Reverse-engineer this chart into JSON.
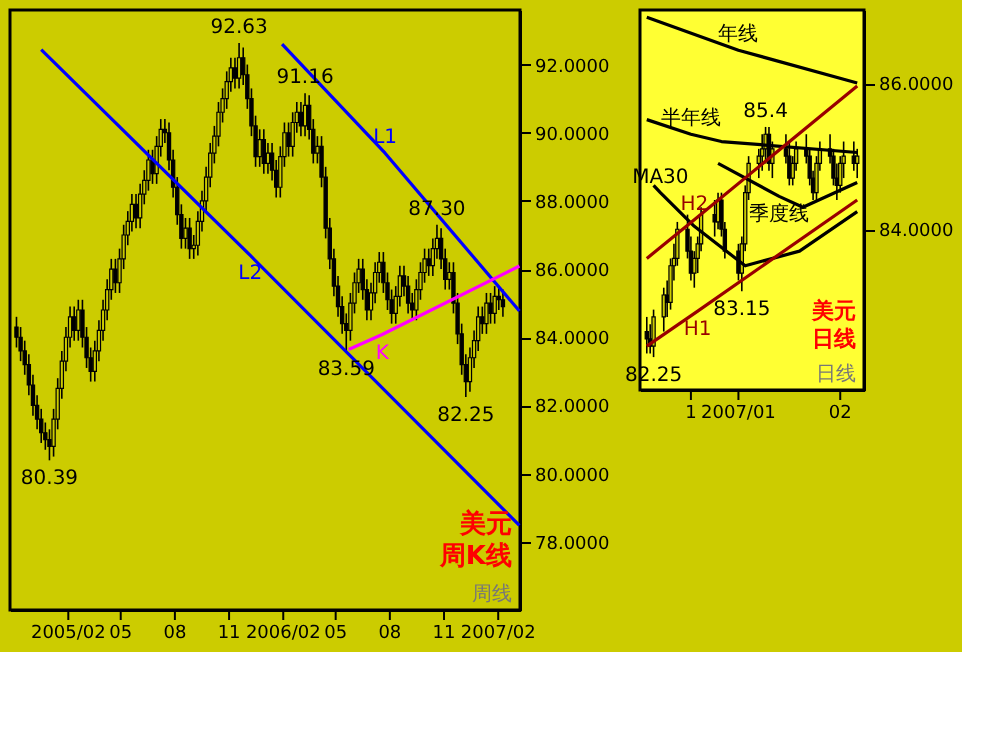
{
  "chart_data": [
    {
      "type": "candlestick",
      "x": [
        "2004-11-05",
        "2004-11-12",
        "2004-11-19",
        "2004-11-26",
        "2004-12-03",
        "2004-12-10",
        "2004-12-17",
        "2004-12-24",
        "2004-12-31",
        "2005-01-07",
        "2005-01-14",
        "2005-01-21",
        "2005-01-28",
        "2005-02-04",
        "2005-02-11",
        "2005-02-18",
        "2005-02-25",
        "2005-03-04",
        "2005-03-11",
        "2005-03-18",
        "2005-03-25",
        "2005-04-01",
        "2005-04-08",
        "2005-04-15",
        "2005-04-22",
        "2005-04-29",
        "2005-05-06",
        "2005-05-13",
        "2005-05-20",
        "2005-05-27",
        "2005-06-03",
        "2005-06-10",
        "2005-06-17",
        "2005-06-24",
        "2005-07-01",
        "2005-07-08",
        "2005-07-15",
        "2005-07-22",
        "2005-07-29",
        "2005-08-05",
        "2005-08-12",
        "2005-08-19",
        "2005-08-26",
        "2005-09-02",
        "2005-09-09",
        "2005-09-16",
        "2005-09-23",
        "2005-09-30",
        "2005-10-07",
        "2005-10-14",
        "2005-10-21",
        "2005-10-28",
        "2005-11-04",
        "2005-11-11",
        "2005-11-18",
        "2005-11-25",
        "2005-12-02",
        "2005-12-09",
        "2005-12-16",
        "2005-12-23",
        "2005-12-30",
        "2006-01-06",
        "2006-01-13",
        "2006-01-20",
        "2006-01-27",
        "2006-02-03",
        "2006-02-10",
        "2006-02-17",
        "2006-02-24",
        "2006-03-03",
        "2006-03-10",
        "2006-03-17",
        "2006-03-24",
        "2006-03-31",
        "2006-04-07",
        "2006-04-14",
        "2006-04-21",
        "2006-04-28",
        "2006-05-05",
        "2006-05-12",
        "2006-05-19",
        "2006-05-26",
        "2006-06-02",
        "2006-06-09",
        "2006-06-16",
        "2006-06-23",
        "2006-06-30",
        "2006-07-07",
        "2006-07-14",
        "2006-07-21",
        "2006-07-28",
        "2006-08-04",
        "2006-08-11",
        "2006-08-18",
        "2006-08-25",
        "2006-09-01",
        "2006-09-08",
        "2006-09-15",
        "2006-09-22",
        "2006-09-29",
        "2006-10-06",
        "2006-10-13",
        "2006-10-20",
        "2006-10-27",
        "2006-11-03",
        "2006-11-10",
        "2006-11-17",
        "2006-11-24",
        "2006-12-01",
        "2006-12-08",
        "2006-12-15",
        "2006-12-22",
        "2006-12-29",
        "2007-01-05",
        "2007-01-12",
        "2007-01-19",
        "2007-01-26",
        "2007-02-02",
        "2007-02-09"
      ],
      "ohlc": [
        [
          84.3,
          84.6,
          83.7,
          84.0
        ],
        [
          84.0,
          84.3,
          83.3,
          83.6
        ],
        [
          83.6,
          83.9,
          82.9,
          83.2
        ],
        [
          83.2,
          83.5,
          82.3,
          82.6
        ],
        [
          82.6,
          82.9,
          81.7,
          82.0
        ],
        [
          82.0,
          82.3,
          81.3,
          81.6
        ],
        [
          81.6,
          81.9,
          80.9,
          81.2
        ],
        [
          81.2,
          81.5,
          80.7,
          81.0
        ],
        [
          81.0,
          81.3,
          80.39,
          80.8
        ],
        [
          80.8,
          81.9,
          80.5,
          81.6
        ],
        [
          81.6,
          82.8,
          81.3,
          82.5
        ],
        [
          82.5,
          83.6,
          82.2,
          83.3
        ],
        [
          83.3,
          84.3,
          83.0,
          84.0
        ],
        [
          84.0,
          84.9,
          83.7,
          84.6
        ],
        [
          84.6,
          84.9,
          83.9,
          84.2
        ],
        [
          84.2,
          85.1,
          83.9,
          84.8
        ],
        [
          84.8,
          85.1,
          83.7,
          84.0
        ],
        [
          84.0,
          84.3,
          83.1,
          83.4
        ],
        [
          83.4,
          83.7,
          82.7,
          83.0
        ],
        [
          83.0,
          83.9,
          82.7,
          83.6
        ],
        [
          83.6,
          84.5,
          83.3,
          84.2
        ],
        [
          84.2,
          85.1,
          83.9,
          84.8
        ],
        [
          84.8,
          85.7,
          84.5,
          85.4
        ],
        [
          85.4,
          86.3,
          85.1,
          86.0
        ],
        [
          86.0,
          86.3,
          85.3,
          85.6
        ],
        [
          85.6,
          86.6,
          85.3,
          86.3
        ],
        [
          86.3,
          87.3,
          86.0,
          87.0
        ],
        [
          87.0,
          87.7,
          86.7,
          87.4
        ],
        [
          87.4,
          88.2,
          87.1,
          87.9
        ],
        [
          87.9,
          88.2,
          87.2,
          87.5
        ],
        [
          87.5,
          88.5,
          87.2,
          88.2
        ],
        [
          88.2,
          88.9,
          87.9,
          88.6
        ],
        [
          88.6,
          89.5,
          88.3,
          89.2
        ],
        [
          89.2,
          89.5,
          88.5,
          88.8
        ],
        [
          88.8,
          89.9,
          88.5,
          89.6
        ],
        [
          89.6,
          90.4,
          89.3,
          90.1
        ],
        [
          90.1,
          90.4,
          89.7,
          90.0
        ],
        [
          90.0,
          90.3,
          88.9,
          89.2
        ],
        [
          89.2,
          89.5,
          88.1,
          88.4
        ],
        [
          88.4,
          88.7,
          87.3,
          87.6
        ],
        [
          87.6,
          87.9,
          86.6,
          86.9
        ],
        [
          86.9,
          87.5,
          86.6,
          87.2
        ],
        [
          87.2,
          87.5,
          86.3,
          86.6
        ],
        [
          86.6,
          87.0,
          86.3,
          86.7
        ],
        [
          86.7,
          87.7,
          86.4,
          87.4
        ],
        [
          87.4,
          88.3,
          87.1,
          88.0
        ],
        [
          88.0,
          89.0,
          87.7,
          88.7
        ],
        [
          88.7,
          89.7,
          88.4,
          89.4
        ],
        [
          89.4,
          90.2,
          89.1,
          89.9
        ],
        [
          89.9,
          90.9,
          89.6,
          90.6
        ],
        [
          90.6,
          91.3,
          90.3,
          91.0
        ],
        [
          91.0,
          91.8,
          90.7,
          91.5
        ],
        [
          91.5,
          92.2,
          91.2,
          91.9
        ],
        [
          91.9,
          92.2,
          91.3,
          91.6
        ],
        [
          91.6,
          92.63,
          91.3,
          92.2
        ],
        [
          92.2,
          92.5,
          91.4,
          91.7
        ],
        [
          91.7,
          92.0,
          90.7,
          91.0
        ],
        [
          91.0,
          91.3,
          89.9,
          90.2
        ],
        [
          90.2,
          90.5,
          89.0,
          89.3
        ],
        [
          89.3,
          90.1,
          89.0,
          89.8
        ],
        [
          89.8,
          90.1,
          88.8,
          89.1
        ],
        [
          89.1,
          89.7,
          88.8,
          89.4
        ],
        [
          89.4,
          89.7,
          88.6,
          88.9
        ],
        [
          88.9,
          89.2,
          88.1,
          88.4
        ],
        [
          88.4,
          89.6,
          88.1,
          89.3
        ],
        [
          89.3,
          90.3,
          89.0,
          90.0
        ],
        [
          90.0,
          90.3,
          89.3,
          89.6
        ],
        [
          89.6,
          90.6,
          89.3,
          90.3
        ],
        [
          90.3,
          90.9,
          90.0,
          90.6
        ],
        [
          90.6,
          90.9,
          89.9,
          90.2
        ],
        [
          90.2,
          91.16,
          89.9,
          90.8
        ],
        [
          90.8,
          91.1,
          89.8,
          90.1
        ],
        [
          90.1,
          90.4,
          89.1,
          89.4
        ],
        [
          89.4,
          89.9,
          89.1,
          89.6
        ],
        [
          89.6,
          89.9,
          88.4,
          88.7
        ],
        [
          88.7,
          89.0,
          86.9,
          87.2
        ],
        [
          87.2,
          87.5,
          86.0,
          86.3
        ],
        [
          86.3,
          86.6,
          85.2,
          85.5
        ],
        [
          85.5,
          85.8,
          84.6,
          84.9
        ],
        [
          84.9,
          85.2,
          84.1,
          84.4
        ],
        [
          84.4,
          84.7,
          83.59,
          84.2
        ],
        [
          84.2,
          85.3,
          83.9,
          85.0
        ],
        [
          85.0,
          85.9,
          84.7,
          85.6
        ],
        [
          85.6,
          86.3,
          85.3,
          86.0
        ],
        [
          86.0,
          86.3,
          85.1,
          85.4
        ],
        [
          85.4,
          85.7,
          84.5,
          84.8
        ],
        [
          84.8,
          85.6,
          84.5,
          85.3
        ],
        [
          85.3,
          86.2,
          85.0,
          85.9
        ],
        [
          85.9,
          86.5,
          85.6,
          86.2
        ],
        [
          86.2,
          86.5,
          85.3,
          85.6
        ],
        [
          85.6,
          85.9,
          84.8,
          85.1
        ],
        [
          85.1,
          85.4,
          84.4,
          84.7
        ],
        [
          84.7,
          85.5,
          84.4,
          85.2
        ],
        [
          85.2,
          86.1,
          84.9,
          85.8
        ],
        [
          85.8,
          86.1,
          85.2,
          85.5
        ],
        [
          85.5,
          85.8,
          84.7,
          85.0
        ],
        [
          85.0,
          85.3,
          84.5,
          84.8
        ],
        [
          84.8,
          85.7,
          84.5,
          85.4
        ],
        [
          85.4,
          86.2,
          85.1,
          85.9
        ],
        [
          85.9,
          86.6,
          85.6,
          86.3
        ],
        [
          86.3,
          86.6,
          85.8,
          86.1
        ],
        [
          86.1,
          86.9,
          85.8,
          86.6
        ],
        [
          86.6,
          87.3,
          86.3,
          86.9
        ],
        [
          86.9,
          87.2,
          86.0,
          86.3
        ],
        [
          86.3,
          86.6,
          85.4,
          85.7
        ],
        [
          85.7,
          86.2,
          85.4,
          85.9
        ],
        [
          85.9,
          86.2,
          84.7,
          85.0
        ],
        [
          85.0,
          85.3,
          83.8,
          84.1
        ],
        [
          84.1,
          84.4,
          82.9,
          83.2
        ],
        [
          83.2,
          83.5,
          82.25,
          82.7
        ],
        [
          82.7,
          83.7,
          82.4,
          83.4
        ],
        [
          83.4,
          84.2,
          83.1,
          83.9
        ],
        [
          83.9,
          84.9,
          83.6,
          84.6
        ],
        [
          84.6,
          84.9,
          84.1,
          84.4
        ],
        [
          84.4,
          85.3,
          84.1,
          85.0
        ],
        [
          85.0,
          85.3,
          84.4,
          84.7
        ],
        [
          84.7,
          85.5,
          84.4,
          85.2
        ],
        [
          85.2,
          85.5,
          84.8,
          85.1
        ],
        [
          85.1,
          85.4,
          84.6,
          84.9
        ]
      ],
      "series": [
        {
          "type": "line",
          "name": "L1",
          "color": "#0000ff",
          "x": [
            "2006-01-30",
            "2006-07-24",
            "2007-03-09"
          ],
          "values": [
            92.6,
            89.4,
            84.77
          ]
        },
        {
          "type": "line",
          "name": "L2",
          "color": "#0000ff",
          "x": [
            "2004-12-17",
            "2005-12-07",
            "2007-03-09"
          ],
          "values": [
            92.44,
            86.4,
            78.48
          ]
        },
        {
          "type": "line",
          "name": "K",
          "color": "#ff00ff",
          "x": [
            "2006-05-23",
            "2006-07-19",
            "2007-03-09"
          ],
          "values": [
            83.64,
            84.08,
            86.09
          ]
        }
      ],
      "xlim": [
        "2004-10-25",
        "2007-03-10"
      ],
      "xticks": [
        {
          "value": "2005-02-01",
          "label": "2005/02"
        },
        {
          "value": "2005-05-01",
          "label": "05"
        },
        {
          "value": "2005-08-01",
          "label": "08"
        },
        {
          "value": "2005-11-01",
          "label": "11"
        },
        {
          "value": "2006-02-01",
          "label": "2006/02"
        },
        {
          "value": "2006-05-01",
          "label": "05"
        },
        {
          "value": "2006-08-01",
          "label": "08"
        },
        {
          "value": "2006-11-01",
          "label": "11"
        },
        {
          "value": "2007-02-01",
          "label": "2007/02"
        }
      ],
      "ylim": [
        76.0,
        93.6
      ],
      "yticks": [
        {
          "value": 78,
          "label": "78.0000"
        },
        {
          "value": 80,
          "label": "80.0000"
        },
        {
          "value": 82,
          "label": "82.0000"
        },
        {
          "value": 84,
          "label": "84.0000"
        },
        {
          "value": 86,
          "label": "86.0000"
        },
        {
          "value": 88,
          "label": "88.0000"
        },
        {
          "value": 90,
          "label": "90.0000"
        },
        {
          "value": 92,
          "label": "92.0000"
        }
      ],
      "annotations": [
        {
          "text": "92.63",
          "x": "2005-11-18",
          "y": 92.63
        },
        {
          "text": "91.16",
          "x": "2006-03-10",
          "y": 91.16
        },
        {
          "text": "87.30",
          "x": "2006-10-20",
          "y": 87.3
        },
        {
          "text": "83.59",
          "x": "2006-05-19",
          "y": 83.59
        },
        {
          "text": "82.25",
          "x": "2006-12-08",
          "y": 82.25
        },
        {
          "text": "80.39",
          "x": "2004-12-31",
          "y": 80.39
        },
        "美元",
        "周K线",
        "周线"
      ],
      "line_style": "solid"
    },
    {
      "type": "candlestick",
      "x": [
        "2006-12-06",
        "2006-12-07",
        "2006-12-08",
        "2006-12-11",
        "2006-12-12",
        "2006-12-13",
        "2006-12-14",
        "2006-12-15",
        "2006-12-18",
        "2006-12-19",
        "2006-12-20",
        "2006-12-21",
        "2006-12-22",
        "2006-12-26",
        "2006-12-27",
        "2006-12-28",
        "2006-12-29",
        "2007-01-02",
        "2007-01-03",
        "2007-01-04",
        "2007-01-05",
        "2007-01-08",
        "2007-01-09",
        "2007-01-10",
        "2007-01-11",
        "2007-01-12",
        "2007-01-16",
        "2007-01-17",
        "2007-01-18",
        "2007-01-19",
        "2007-01-22",
        "2007-01-23",
        "2007-01-24",
        "2007-01-25",
        "2007-01-26",
        "2007-01-29",
        "2007-01-30",
        "2007-01-31",
        "2007-02-01",
        "2007-02-02",
        "2007-02-05",
        "2007-02-06"
      ],
      "ohlc": [
        [
          82.6,
          82.8,
          82.3,
          82.5
        ],
        [
          82.5,
          82.7,
          82.3,
          82.4
        ],
        [
          82.4,
          82.9,
          82.25,
          82.8
        ],
        [
          82.8,
          83.2,
          82.6,
          83.1
        ],
        [
          83.1,
          83.3,
          82.8,
          83.0
        ],
        [
          83.0,
          83.6,
          82.9,
          83.5
        ],
        [
          83.5,
          83.8,
          83.3,
          83.6
        ],
        [
          83.6,
          84.1,
          83.5,
          84.0
        ],
        [
          84.0,
          84.2,
          83.6,
          83.7
        ],
        [
          83.7,
          83.9,
          83.3,
          83.4
        ],
        [
          83.4,
          83.7,
          83.2,
          83.6
        ],
        [
          83.6,
          83.9,
          83.4,
          83.8
        ],
        [
          83.8,
          84.3,
          83.7,
          84.2
        ],
        [
          84.2,
          84.4,
          83.9,
          84.1
        ],
        [
          84.1,
          84.5,
          84.0,
          84.4
        ],
        [
          84.4,
          84.5,
          83.9,
          84.0
        ],
        [
          84.0,
          84.1,
          83.6,
          83.7
        ],
        [
          83.7,
          83.8,
          83.3,
          83.4
        ],
        [
          83.4,
          83.9,
          83.15,
          83.8
        ],
        [
          83.8,
          84.6,
          83.7,
          84.5
        ],
        [
          84.5,
          85.0,
          84.4,
          84.9
        ],
        [
          84.9,
          85.1,
          84.7,
          85.0
        ],
        [
          85.0,
          85.3,
          84.8,
          85.1
        ],
        [
          85.1,
          85.4,
          84.9,
          85.3
        ],
        [
          85.3,
          85.4,
          84.8,
          84.9
        ],
        [
          84.9,
          85.2,
          84.7,
          85.1
        ],
        [
          85.1,
          85.3,
          84.9,
          85.0
        ],
        [
          85.0,
          85.2,
          84.6,
          84.7
        ],
        [
          84.7,
          85.0,
          84.6,
          84.9
        ],
        [
          84.9,
          85.2,
          84.8,
          85.1
        ],
        [
          85.1,
          85.3,
          84.9,
          85.0
        ],
        [
          85.0,
          85.1,
          84.6,
          84.7
        ],
        [
          84.7,
          84.8,
          84.4,
          84.5
        ],
        [
          84.5,
          85.0,
          84.4,
          84.9
        ],
        [
          84.9,
          85.2,
          84.8,
          85.1
        ],
        [
          85.1,
          85.3,
          84.9,
          85.0
        ],
        [
          85.0,
          85.1,
          84.6,
          84.7
        ],
        [
          84.7,
          84.9,
          84.4,
          84.6
        ],
        [
          84.6,
          85.0,
          84.5,
          84.9
        ],
        [
          84.9,
          85.2,
          84.7,
          85.0
        ],
        [
          85.0,
          85.2,
          84.8,
          84.9
        ],
        [
          84.9,
          85.1,
          84.7,
          85.0
        ]
      ],
      "series": [
        {
          "type": "line",
          "name": "年线",
          "color": "#000000",
          "x": [
            "2006-12-06",
            "2007-01-02",
            "2007-02-06"
          ],
          "values": [
            86.9,
            86.45,
            86.0
          ]
        },
        {
          "type": "line",
          "name": "半年线",
          "color": "#000000",
          "x": [
            "2006-12-06",
            "2006-12-19",
            "2006-12-28",
            "2007-02-06"
          ],
          "values": [
            85.5,
            85.3,
            85.2,
            85.05
          ]
        },
        {
          "type": "line",
          "name": "季度线",
          "color": "#000000",
          "x": [
            "2006-12-27",
            "2007-01-14",
            "2007-01-21",
            "2007-02-06"
          ],
          "values": [
            84.9,
            84.45,
            84.3,
            84.64
          ]
        },
        {
          "type": "line",
          "name": "MA30",
          "color": "#000000",
          "x": [
            "2006-12-08",
            "2006-12-10",
            "2006-12-20",
            "2007-01-04",
            "2007-01-20",
            "2007-02-06"
          ],
          "values": [
            84.6,
            84.5,
            84.04,
            83.5,
            83.7,
            84.24
          ]
        },
        {
          "type": "line",
          "name": "H1",
          "color": "#990000",
          "x": [
            "2006-12-06",
            "2006-12-21",
            "2007-02-06"
          ],
          "values": [
            82.4,
            82.88,
            84.4
          ]
        },
        {
          "type": "line",
          "name": "H2",
          "color": "#990000",
          "x": [
            "2006-12-06",
            "2006-12-20",
            "2007-02-06"
          ],
          "values": [
            83.6,
            84.13,
            85.96
          ]
        }
      ],
      "xlim": [
        "2006-12-04",
        "2007-02-08"
      ],
      "xticks": [
        {
          "value": "2006-12-19",
          "label": "1"
        },
        {
          "value": "2007-01-02",
          "label": "2007/01"
        },
        {
          "value": "2007-02-01",
          "label": "02"
        }
      ],
      "ylim": [
        81.8,
        87.0
      ],
      "yticks": [
        {
          "value": 84,
          "label": "84.0000"
        },
        {
          "value": 86,
          "label": "86.0000"
        }
      ],
      "annotations": [
        {
          "text": "85.4",
          "x": "2007-01-10",
          "y": 85.4
        },
        {
          "text": "83.15",
          "x": "2007-01-03",
          "y": 83.15
        },
        {
          "text": "82.25",
          "x": "2006-12-08",
          "y": 82.25
        },
        "美元",
        "日线",
        "日线"
      ],
      "line_style": "solid"
    }
  ]
}
